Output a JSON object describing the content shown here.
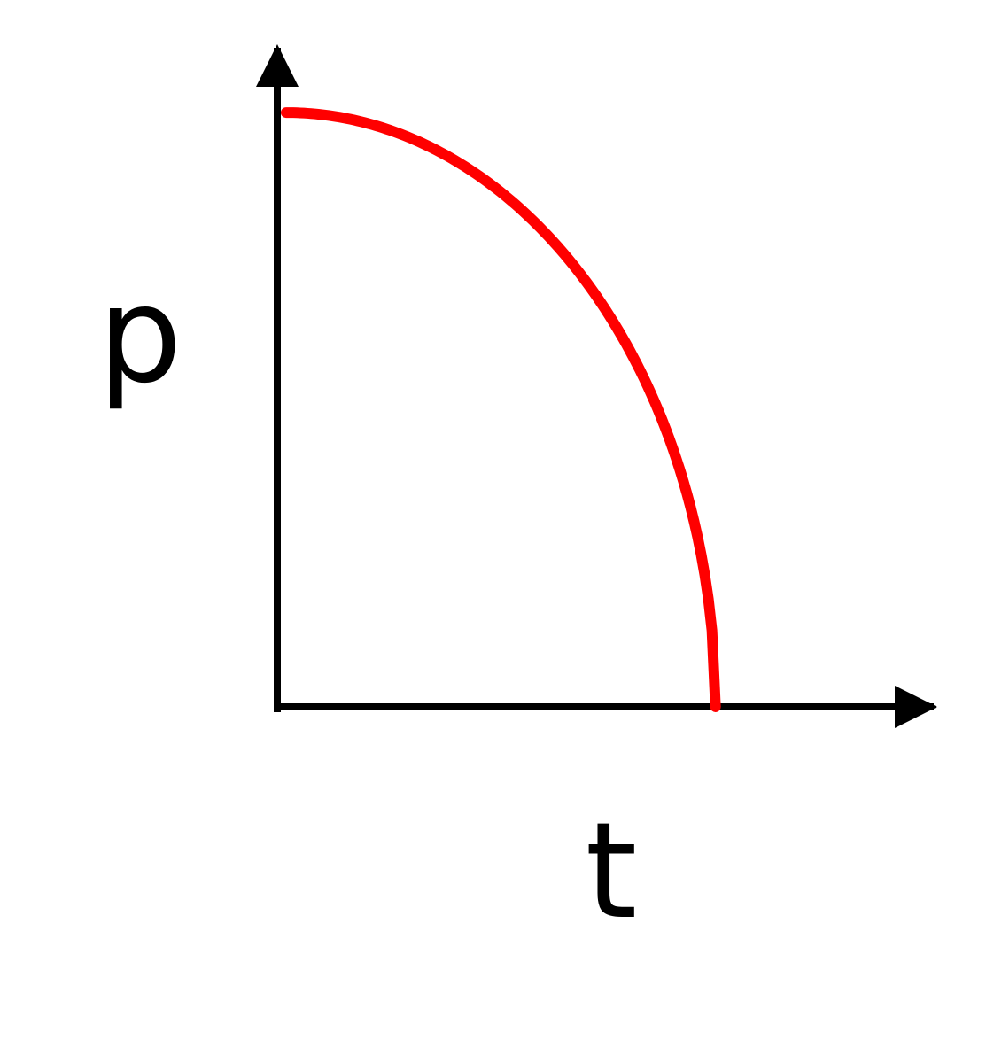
{
  "chart_data": {
    "type": "line",
    "title": "",
    "xlabel": "t",
    "ylabel": "p",
    "x": [
      0,
      0.1,
      0.2,
      0.3,
      0.4,
      0.5,
      0.6,
      0.7,
      0.8,
      0.9,
      0.95,
      1.0
    ],
    "series": [
      {
        "values": [
          1.0,
          0.995,
          0.98,
          0.954,
          0.917,
          0.866,
          0.8,
          0.714,
          0.6,
          0.436,
          0.312,
          0.0
        ]
      }
    ],
    "xlim": [
      0,
      1.5
    ],
    "ylim": [
      0,
      1.1
    ],
    "grid": false,
    "colors": {
      "axis": "#000000",
      "curve": "#ff0000"
    }
  }
}
